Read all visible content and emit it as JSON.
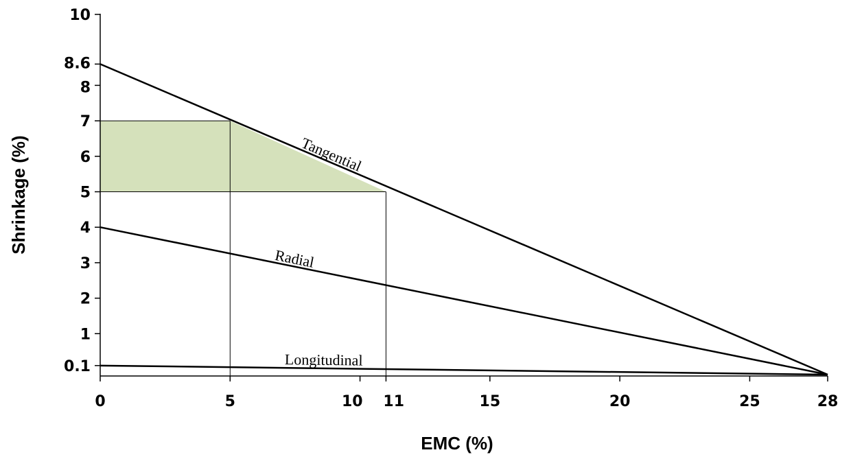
{
  "chart_data": {
    "type": "line",
    "xlabel": "EMC (%)",
    "ylabel": "Shrinkage (%)",
    "xlim": [
      0,
      28
    ],
    "ylim": [
      0,
      10
    ],
    "x_ticks": [
      {
        "value": 0,
        "label": "0"
      },
      {
        "value": 5,
        "label": "5"
      },
      {
        "value": 10,
        "label": "10"
      },
      {
        "value": 11,
        "label": "11"
      },
      {
        "value": 15,
        "label": "15"
      },
      {
        "value": 20,
        "label": "20"
      },
      {
        "value": 25,
        "label": "25"
      },
      {
        "value": 28,
        "label": "28"
      }
    ],
    "y_ticks": [
      {
        "value": 0.1,
        "label": "0.1"
      },
      {
        "value": 1,
        "label": "1"
      },
      {
        "value": 2,
        "label": "2"
      },
      {
        "value": 3,
        "label": "3"
      },
      {
        "value": 4,
        "label": "4"
      },
      {
        "value": 5,
        "label": "5"
      },
      {
        "value": 6,
        "label": "6"
      },
      {
        "value": 7,
        "label": "7"
      },
      {
        "value": 8,
        "label": "8"
      },
      {
        "value": 8.6,
        "label": "8.6"
      },
      {
        "value": 10,
        "label": "10"
      }
    ],
    "series": [
      {
        "name": "Tangential",
        "x": [
          0,
          28
        ],
        "y": [
          8.6,
          0.1
        ]
      },
      {
        "name": "Radial",
        "x": [
          0,
          28
        ],
        "y": [
          4.0,
          0.1
        ]
      },
      {
        "name": "Longitudinal",
        "x": [
          0,
          28
        ],
        "y": [
          0.1,
          0.1
        ]
      }
    ],
    "highlight_region": {
      "x": [
        0,
        5,
        11
      ],
      "y": [
        7,
        7,
        5
      ],
      "y_bottom": 5,
      "color": "#d5e1bb"
    },
    "reference_lines": [
      {
        "x": 5,
        "y_top": 7
      },
      {
        "x": 11,
        "y_top": 5
      }
    ],
    "grid": false,
    "legend": "none"
  }
}
